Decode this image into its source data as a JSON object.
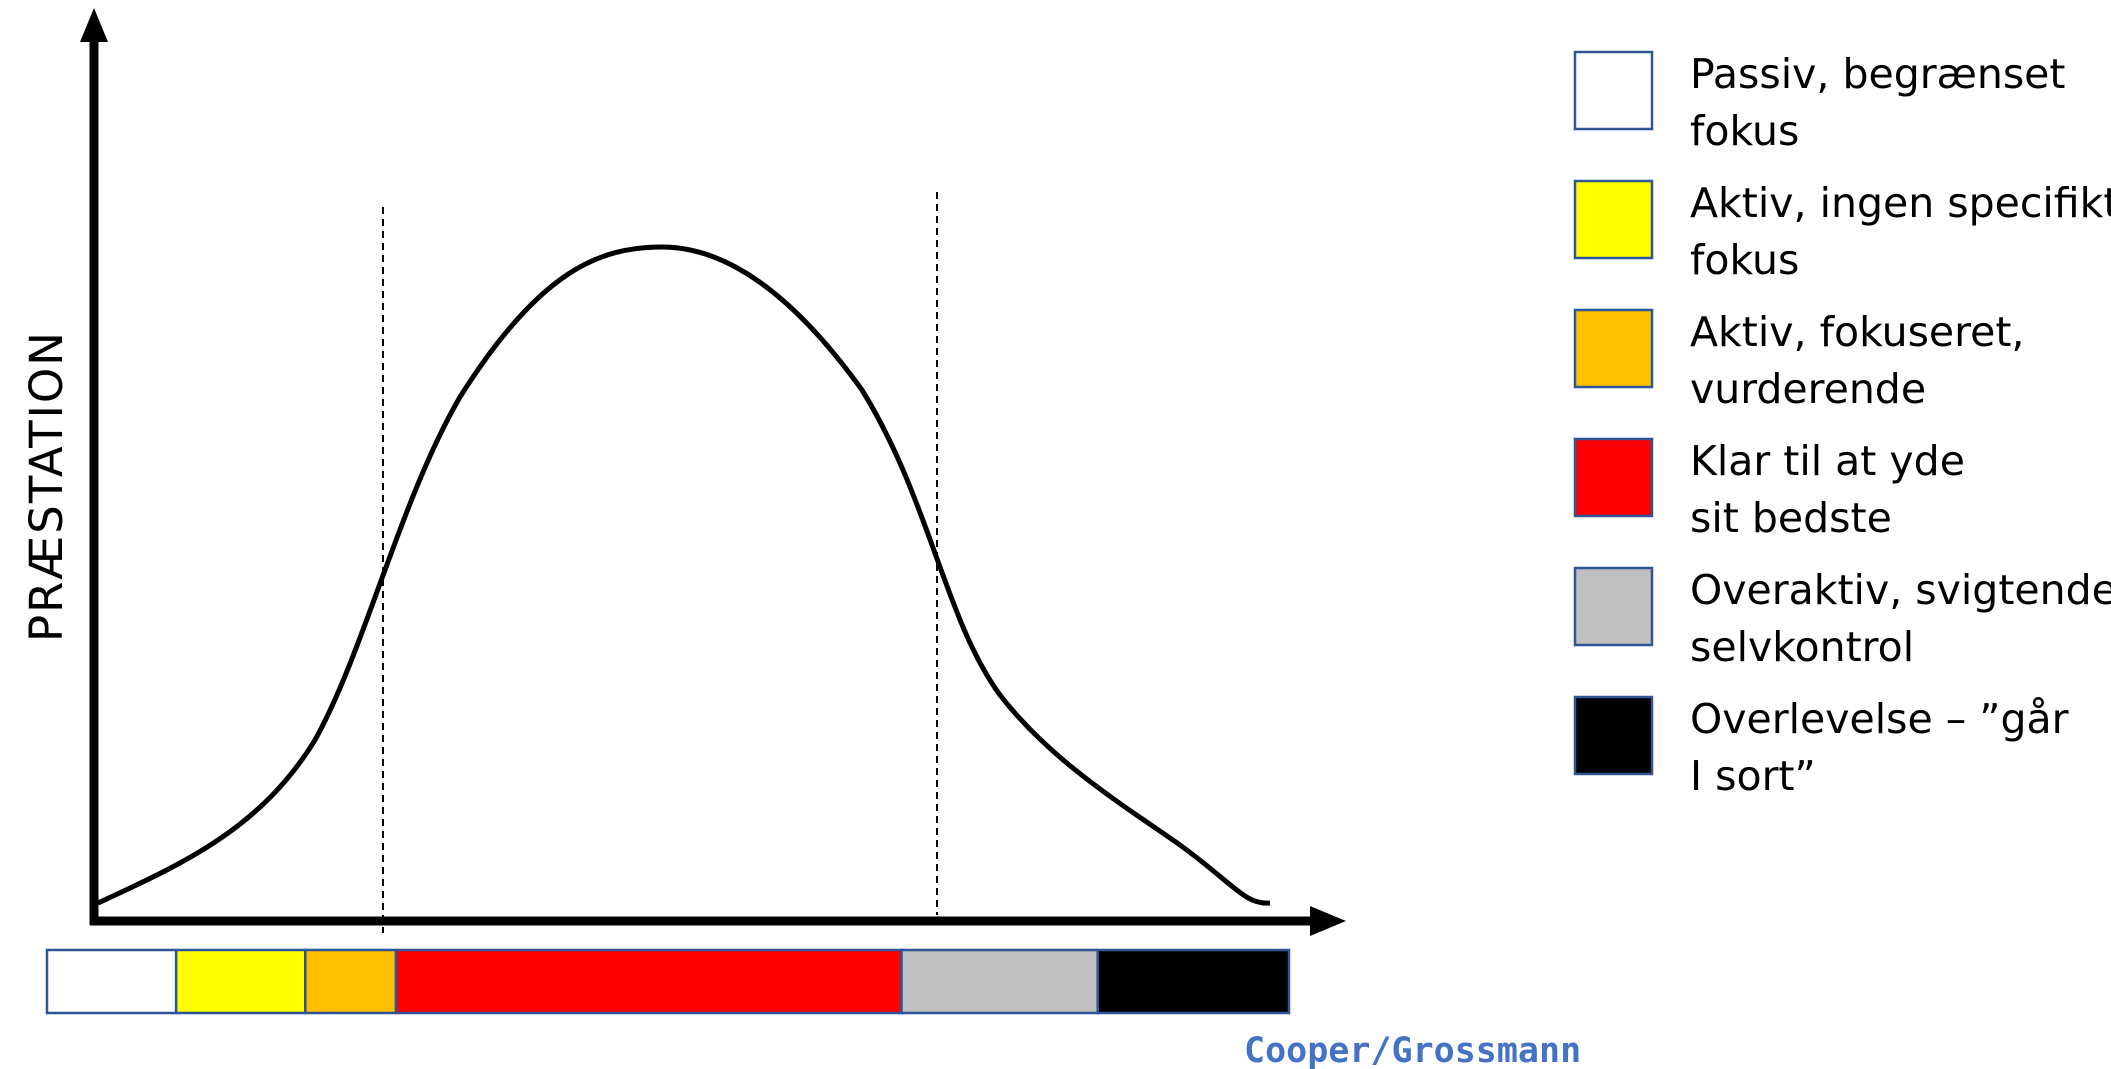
{
  "y_axis_label": "PRÆSTATION",
  "credit": {
    "text": "Cooper/Grossmann",
    "color": "#4472C4"
  },
  "colors": {
    "axis": "#000000",
    "curve": "#000000",
    "box_border": "#2F5597",
    "white": "#FFFFFF",
    "yellow": "#FFFF00",
    "orange": "#FFC000",
    "red": "#FF0000",
    "grey": "#BFBFBF",
    "black": "#000000"
  },
  "legend": [
    {
      "color": "#FFFFFF",
      "lines": [
        "Passiv, begrænset",
        "fokus"
      ]
    },
    {
      "color": "#FFFF00",
      "lines": [
        "Aktiv, ingen specifikt",
        "fokus"
      ]
    },
    {
      "color": "#FFC000",
      "lines": [
        "Aktiv, fokuseret,",
        "vurderende"
      ]
    },
    {
      "color": "#FF0000",
      "lines": [
        "Klar til at yde",
        "sit bedste"
      ]
    },
    {
      "color": "#BFBFBF",
      "lines": [
        "Overaktiv, svigtende",
        "selvkontrol"
      ]
    },
    {
      "color": "#000000",
      "lines": [
        "Overlevelse – ”går",
        "I sort”"
      ]
    }
  ],
  "color_bar": [
    {
      "color": "#FFFFFF",
      "share": 0.104
    },
    {
      "color": "#FFFF00",
      "share": 0.104
    },
    {
      "color": "#FFC000",
      "share": 0.073
    },
    {
      "color": "#FF0000",
      "share": 0.407
    },
    {
      "color": "#BFBFBF",
      "share": 0.158
    },
    {
      "color": "#000000",
      "share": 0.154
    }
  ]
}
